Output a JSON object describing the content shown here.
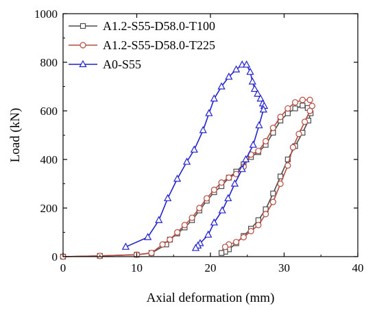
{
  "chart_data": {
    "type": "line",
    "title": "",
    "xlabel": "Axial deformation (mm)",
    "ylabel": "Load (kN)",
    "xlim": [
      0,
      40
    ],
    "ylim": [
      0,
      1000
    ],
    "xticks": [
      "0",
      "10",
      "20",
      "30",
      "40"
    ],
    "yticks": [
      "0",
      "200",
      "400",
      "600",
      "800",
      "1000"
    ],
    "grid": false,
    "legend_position": "top-left",
    "series": [
      {
        "name": "A1.2-S55-D58.0-T100",
        "color": "#4a4a4a",
        "marker": "square",
        "points": [
          [
            0,
            0
          ],
          [
            5,
            3
          ],
          [
            10,
            8
          ],
          [
            12,
            15
          ],
          [
            14,
            50
          ],
          [
            14.5,
            70
          ],
          [
            15.5,
            95
          ],
          [
            16.5,
            120
          ],
          [
            17.5,
            150
          ],
          [
            18.5,
            190
          ],
          [
            19.5,
            230
          ],
          [
            20.5,
            265
          ],
          [
            21.5,
            290
          ],
          [
            22.5,
            325
          ],
          [
            23.5,
            350
          ],
          [
            24.5,
            380
          ],
          [
            25.5,
            410
          ],
          [
            26.5,
            430
          ],
          [
            27.5,
            460
          ],
          [
            28.5,
            510
          ],
          [
            29.5,
            560
          ],
          [
            30.5,
            590
          ],
          [
            31.5,
            610
          ],
          [
            32.5,
            622
          ],
          [
            33.2,
            612
          ],
          [
            33.6,
            590
          ],
          [
            33.3,
            560
          ],
          [
            32.5,
            510
          ],
          [
            31.5,
            455
          ],
          [
            30.5,
            400
          ],
          [
            29.5,
            330
          ],
          [
            28.5,
            260
          ],
          [
            27.5,
            195
          ],
          [
            26.5,
            150
          ],
          [
            25.5,
            115
          ],
          [
            24.5,
            85
          ],
          [
            23.5,
            55
          ],
          [
            22.5,
            30
          ],
          [
            22,
            20
          ],
          [
            21.5,
            15
          ]
        ]
      },
      {
        "name": "A1.2-S55-D58.0-T225",
        "color": "#b5493e",
        "marker": "circle",
        "points": [
          [
            0,
            0
          ],
          [
            5,
            3
          ],
          [
            10,
            8
          ],
          [
            12,
            15
          ],
          [
            13.5,
            50
          ],
          [
            14.5,
            70
          ],
          [
            15.5,
            100
          ],
          [
            16.5,
            130
          ],
          [
            17.5,
            160
          ],
          [
            18.5,
            200
          ],
          [
            19.5,
            240
          ],
          [
            20.5,
            275
          ],
          [
            21.5,
            305
          ],
          [
            22.5,
            325
          ],
          [
            23.5,
            340
          ],
          [
            24.5,
            370
          ],
          [
            25.5,
            420
          ],
          [
            26.5,
            435
          ],
          [
            27.5,
            475
          ],
          [
            28.5,
            530
          ],
          [
            29.5,
            575
          ],
          [
            30.5,
            610
          ],
          [
            31.5,
            635
          ],
          [
            32.5,
            645
          ],
          [
            33.5,
            645
          ],
          [
            33.8,
            620
          ],
          [
            33.5,
            600
          ],
          [
            32.8,
            555
          ],
          [
            32,
            505
          ],
          [
            31.2,
            450
          ],
          [
            30.5,
            375
          ],
          [
            29.5,
            300
          ],
          [
            28.5,
            225
          ],
          [
            27.5,
            175
          ],
          [
            26.5,
            130
          ],
          [
            25.5,
            105
          ],
          [
            24.5,
            80
          ],
          [
            23.5,
            60
          ],
          [
            22.5,
            50
          ],
          [
            22,
            40
          ]
        ]
      },
      {
        "name": "A0-S55",
        "color": "#1f1fcf",
        "marker": "triangle",
        "points": [
          [
            8.5,
            40
          ],
          [
            11.5,
            80
          ],
          [
            13,
            150
          ],
          [
            14.2,
            240
          ],
          [
            15.5,
            320
          ],
          [
            16.8,
            390
          ],
          [
            17.8,
            440
          ],
          [
            19,
            520
          ],
          [
            19.8,
            590
          ],
          [
            20.5,
            650
          ],
          [
            21.5,
            700
          ],
          [
            22.5,
            740
          ],
          [
            23.5,
            770
          ],
          [
            24.3,
            790
          ],
          [
            24.9,
            790
          ],
          [
            25.4,
            760
          ],
          [
            25.7,
            720
          ],
          [
            26,
            690
          ],
          [
            26.4,
            670
          ],
          [
            26.8,
            650
          ],
          [
            27.1,
            630
          ],
          [
            27.3,
            620
          ],
          [
            27.2,
            605
          ],
          [
            26.6,
            540
          ],
          [
            25.8,
            460
          ],
          [
            24.8,
            400
          ],
          [
            24.3,
            360
          ],
          [
            23.3,
            300
          ],
          [
            22.4,
            240
          ],
          [
            21.6,
            190
          ],
          [
            20.5,
            140
          ],
          [
            19.7,
            90
          ],
          [
            18.6,
            55
          ],
          [
            18.3,
            45
          ],
          [
            18,
            35
          ]
        ]
      }
    ]
  }
}
